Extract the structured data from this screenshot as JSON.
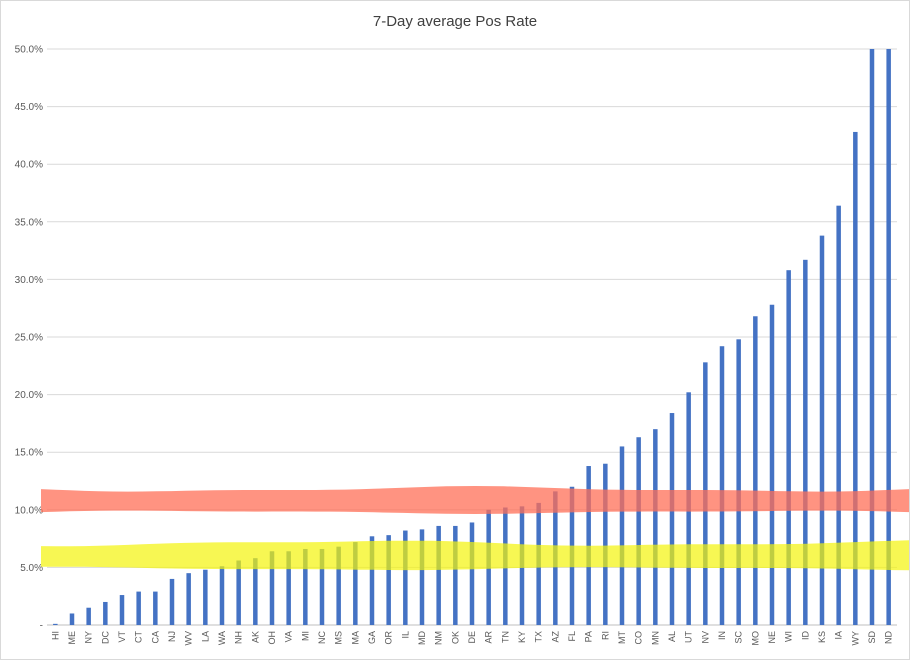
{
  "chart_data": {
    "type": "bar",
    "title": "7-Day average Pos Rate",
    "xlabel": "",
    "ylabel": "",
    "ylim": [
      0,
      50
    ],
    "y_ticks": [
      {
        "value": 0,
        "label": "-"
      },
      {
        "value": 5,
        "label": "5.0%"
      },
      {
        "value": 10,
        "label": "10.0%"
      },
      {
        "value": 15,
        "label": "15.0%"
      },
      {
        "value": 20,
        "label": "20.0%"
      },
      {
        "value": 25,
        "label": "25.0%"
      },
      {
        "value": 30,
        "label": "30.0%"
      },
      {
        "value": 35,
        "label": "35.0%"
      },
      {
        "value": 40,
        "label": "40.0%"
      },
      {
        "value": 45,
        "label": "45.0%"
      },
      {
        "value": 50,
        "label": "50.0%"
      }
    ],
    "grid": true,
    "categories": [
      "HI",
      "ME",
      "NY",
      "DC",
      "VT",
      "CT",
      "CA",
      "NJ",
      "WV",
      "LA",
      "WA",
      "NH",
      "AK",
      "OH",
      "VA",
      "MI",
      "NC",
      "MS",
      "MA",
      "GA",
      "OR",
      "IL",
      "MD",
      "NM",
      "OK",
      "DE",
      "AR",
      "TN",
      "KY",
      "TX",
      "AZ",
      "FL",
      "PA",
      "RI",
      "MT",
      "CO",
      "MN",
      "AL",
      "UT",
      "NV",
      "IN",
      "SC",
      "MO",
      "NE",
      "WI",
      "ID",
      "KS",
      "IA",
      "WY",
      "SD",
      "ND"
    ],
    "series": [
      {
        "name": "7-Day average Pos Rate (%)",
        "color": "#4472c4",
        "values": [
          0.1,
          1.0,
          1.5,
          2.0,
          2.6,
          2.9,
          2.9,
          4.0,
          4.5,
          4.8,
          5.1,
          5.6,
          5.8,
          6.4,
          6.4,
          6.6,
          6.6,
          6.8,
          7.2,
          7.7,
          7.8,
          8.2,
          8.3,
          8.6,
          8.6,
          8.9,
          10.0,
          10.2,
          10.3,
          10.6,
          11.6,
          12.0,
          13.8,
          14.0,
          15.5,
          16.3,
          17.0,
          18.4,
          20.2,
          22.8,
          24.2,
          24.8,
          26.8,
          27.8,
          30.8,
          31.7,
          33.8,
          36.4,
          42.8,
          50.0,
          50.0
        ]
      }
    ],
    "annotations": [
      {
        "name": "red-highlight-band",
        "color": "#ff6f57",
        "opacity": 0.75,
        "from_value": 9.8,
        "to_value": 11.8
      },
      {
        "name": "yellow-highlight-band",
        "color": "#f4f40a",
        "opacity": 0.7,
        "from_value": 4.9,
        "to_value": 7.1
      }
    ]
  }
}
